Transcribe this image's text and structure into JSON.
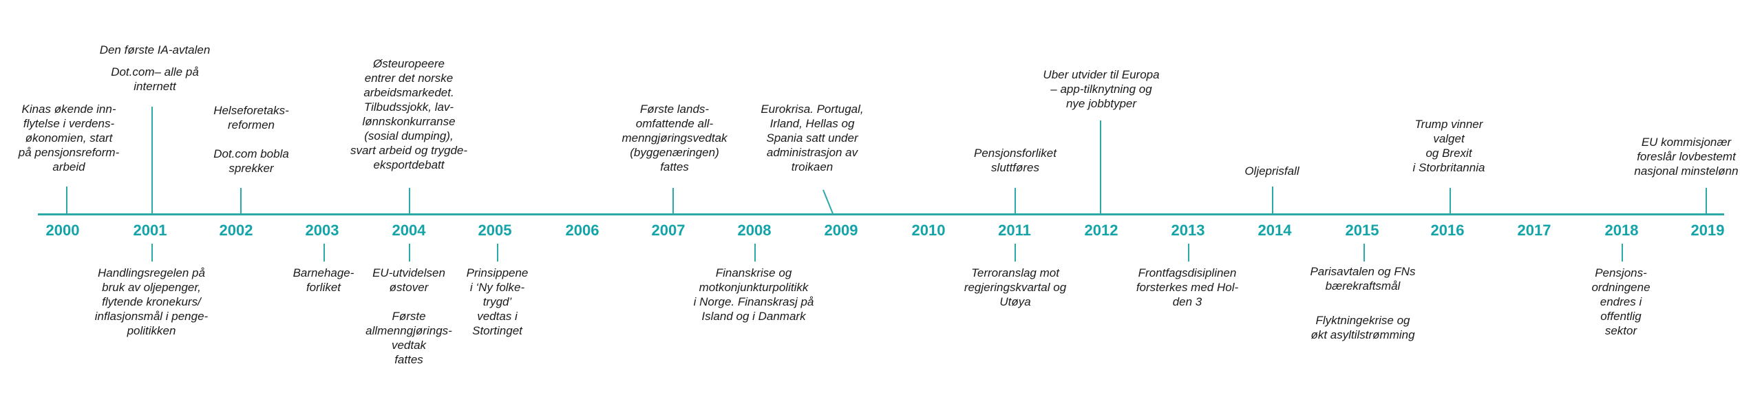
{
  "timeline": {
    "years": [
      "2000",
      "2001",
      "2002",
      "2003",
      "2004",
      "2005",
      "2006",
      "2007",
      "2008",
      "2009",
      "2010",
      "2011",
      "2012",
      "2013",
      "2014",
      "2015",
      "2016",
      "2017",
      "2018",
      "2019"
    ],
    "events_above": [
      {
        "text": "Kinas økende inn-\nflytelse i verdens-\nøkonomien, start\npå pensjonsreform-\narbeid"
      },
      {
        "text": "Den første IA-avtalen"
      },
      {
        "text": "Dot.com– alle på\ninternett"
      },
      {
        "text": "Helseforetaks-\nreformen"
      },
      {
        "text": "Dot.com bobla\nsprekker"
      },
      {
        "text": "Østeuropeere\nentrer det norske\narbeidsmarkedet.\nTilbudssjokk, lav-\nlønnskonkurranse\n(sosial dumping),\nsvart arbeid og trygde-\neksportdebatt"
      },
      {
        "text": "Første lands-\nomfattende all-\nmenngjøringsvedtak\n(byggenæringen)\nfattes"
      },
      {
        "text": "Eurokrisa. Portugal,\nIrland, Hellas og\nSpania satt under\nadministrasjon av\ntroikaen"
      },
      {
        "text": "Pensjonsforliket\nsluttføres"
      },
      {
        "text": "Uber utvider til Europa\n– app-tilknytning og\nnye jobbtyper"
      },
      {
        "text": "Oljeprisfall"
      },
      {
        "text": "Trump vinner\nvalget\nog Brexit\ni Storbritannia"
      },
      {
        "text": "EU kommisjonær\nforeslår lovbestemt\nnasjonal minstelønn"
      }
    ],
    "events_below": [
      {
        "text": "Handlingsregelen på\nbruk av oljepenger,\nflytende kronekurs/\ninflasjonsmål i penge-\npolitikken"
      },
      {
        "text": "Barnehage-\nforliket"
      },
      {
        "text": "EU-utvidelsen\nøstover"
      },
      {
        "text": "Første\nallmenngjørings-\nvedtak\nfattes"
      },
      {
        "text": "Prinsippene\ni ‘Ny folke-\ntrygd’\nvedtas i\nStortinget"
      },
      {
        "text": "Finanskrise og\nmotkonjunkturpolitikk\ni Norge. Finanskrasj på\nIsland og i Danmark"
      },
      {
        "text": "Terroranslag mot\nregjeringskvartal og\nUtøya"
      },
      {
        "text": "Frontfagsdisiplinen\nforsterkes med Hol-\nden 3"
      },
      {
        "text": "Parisavtalen og FNs\nbærekraftsmål"
      },
      {
        "text": "Flyktningekrise og\nøkt asyltilstrømming"
      },
      {
        "text": "Pensjons-\nordningene\nendres i\noffentlig\nsektor"
      }
    ]
  }
}
